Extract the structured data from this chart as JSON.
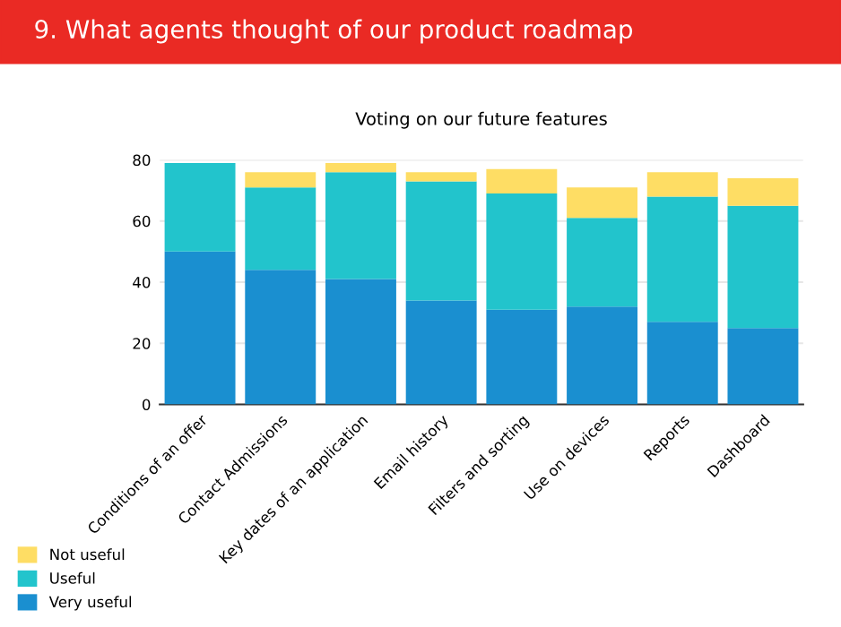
{
  "chart_data": {
    "type": "bar",
    "title": "9. What agents thought of our product roadmap",
    "subtitle": "Voting on our future features",
    "categories": [
      "Conditions of an offer",
      "Contact Admissions",
      "Key dates of an application",
      "Email history",
      "Filters and sorting",
      "Use on devices",
      "Reports",
      "Dashboard"
    ],
    "stacked": true,
    "series": [
      {
        "name": "Very useful",
        "color": "#1a8fd0",
        "values": [
          50,
          44,
          41,
          34,
          31,
          32,
          27,
          25
        ]
      },
      {
        "name": "Useful",
        "color": "#22c4cc",
        "values": [
          29,
          27,
          35,
          39,
          38,
          29,
          41,
          40
        ]
      },
      {
        "name": "Not useful",
        "color": "#fedd64",
        "values": [
          0,
          5,
          3,
          3,
          8,
          10,
          8,
          9
        ]
      }
    ],
    "ylim": [
      0,
      80
    ],
    "yticks": [
      0,
      20,
      40,
      60,
      80
    ],
    "grid": "y",
    "legend": "bottom left"
  }
}
